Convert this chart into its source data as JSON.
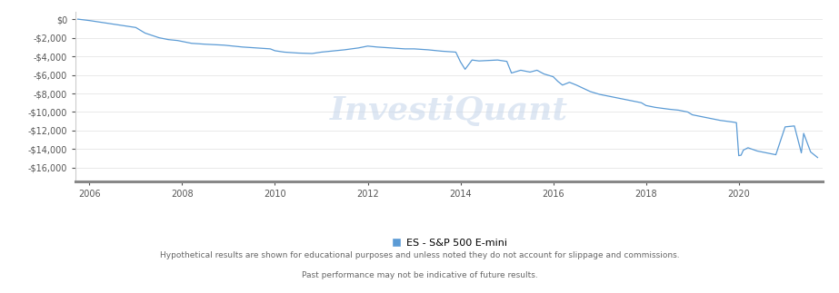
{
  "legend_label": "ES - S&P 500 E-mini",
  "legend_color": "#5b9bd5",
  "disclaimer_line1": "Hypothetical results are shown for educational purposes and unless noted they do not account for slippage and commissions.",
  "disclaimer_line2": "Past performance may not be indicative of future results.",
  "watermark": "InvestiQuant",
  "line_color": "#5b9bd5",
  "background_color": "#ffffff",
  "ytick_labels": [
    "$0",
    "-$2,000",
    "-$4,000",
    "-$6,000",
    "-$8,000",
    "-$10,000",
    "-$12,000",
    "-$14,000",
    "-$16,000"
  ],
  "yticks": [
    0,
    -2000,
    -4000,
    -6000,
    -8000,
    -10000,
    -12000,
    -14000,
    -16000
  ],
  "ylim": [
    -17500,
    800
  ],
  "xlim": [
    2005.7,
    2021.8
  ],
  "xtick_labels": [
    "2006",
    "2008",
    "2010",
    "2012",
    "2014",
    "2016",
    "2018",
    "2020"
  ],
  "xtick_positions": [
    2006,
    2008,
    2010,
    2012,
    2014,
    2016,
    2018,
    2020
  ],
  "x": [
    2005.75,
    2006.0,
    2006.2,
    2006.4,
    2006.6,
    2006.8,
    2007.0,
    2007.2,
    2007.5,
    2007.7,
    2007.9,
    2008.1,
    2008.2,
    2008.5,
    2008.7,
    2008.9,
    2009.1,
    2009.3,
    2009.6,
    2009.9,
    2010.0,
    2010.2,
    2010.5,
    2010.8,
    2011.0,
    2011.2,
    2011.5,
    2011.8,
    2012.0,
    2012.2,
    2012.5,
    2012.8,
    2013.0,
    2013.3,
    2013.6,
    2013.9,
    2014.0,
    2014.1,
    2014.25,
    2014.4,
    2014.6,
    2014.8,
    2015.0,
    2015.1,
    2015.3,
    2015.5,
    2015.65,
    2015.8,
    2016.0,
    2016.1,
    2016.2,
    2016.35,
    2016.5,
    2016.8,
    2017.0,
    2017.3,
    2017.6,
    2017.9,
    2018.0,
    2018.2,
    2018.5,
    2018.7,
    2018.9,
    2019.0,
    2019.3,
    2019.6,
    2019.9,
    2019.95,
    2020.0,
    2020.05,
    2020.1,
    2020.2,
    2020.4,
    2020.6,
    2020.8,
    2021.0,
    2021.2,
    2021.35,
    2021.4,
    2021.55,
    2021.7
  ],
  "y": [
    0,
    -150,
    -300,
    -450,
    -600,
    -750,
    -900,
    -1500,
    -2000,
    -2200,
    -2300,
    -2500,
    -2600,
    -2700,
    -2750,
    -2800,
    -2900,
    -3000,
    -3100,
    -3200,
    -3400,
    -3550,
    -3650,
    -3700,
    -3550,
    -3450,
    -3300,
    -3100,
    -2900,
    -3000,
    -3100,
    -3200,
    -3200,
    -3300,
    -3450,
    -3550,
    -4600,
    -5400,
    -4400,
    -4500,
    -4450,
    -4400,
    -4550,
    -5800,
    -5500,
    -5700,
    -5500,
    -5900,
    -6200,
    -6700,
    -7100,
    -6800,
    -7100,
    -7800,
    -8100,
    -8400,
    -8700,
    -9000,
    -9300,
    -9500,
    -9700,
    -9800,
    -10000,
    -10300,
    -10600,
    -10900,
    -11100,
    -11150,
    -14700,
    -14650,
    -14100,
    -13850,
    -14200,
    -14400,
    -14600,
    -11600,
    -11500,
    -14400,
    -12300,
    -14300,
    -14900
  ]
}
